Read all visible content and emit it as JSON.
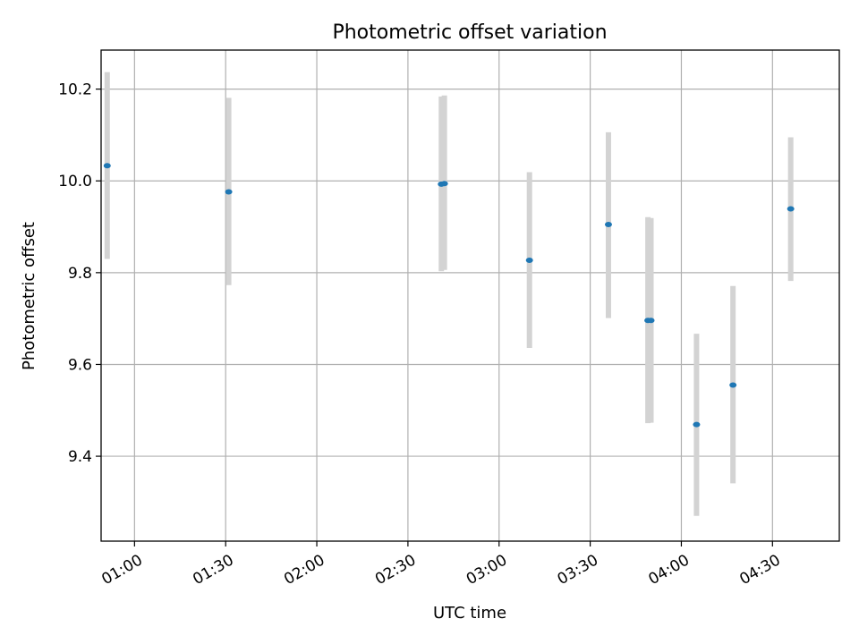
{
  "chart_data": {
    "type": "scatter",
    "title": "Photometric offset variation",
    "xlabel": "UTC time",
    "ylabel": "Photometric offset",
    "x_axis": {
      "kind": "time",
      "range": [
        "00:49",
        "04:52"
      ],
      "ticks": [
        "01:00",
        "01:30",
        "02:00",
        "02:30",
        "03:00",
        "03:30",
        "04:00",
        "04:30"
      ]
    },
    "y_axis": {
      "range": [
        9.215,
        10.285
      ],
      "ticks": [
        "9.4",
        "9.6",
        "9.8",
        "10.0",
        "10.2"
      ]
    },
    "grid": true,
    "colors": {
      "marker": "#1f77b4",
      "errorbar": "#d3d3d3"
    },
    "points": [
      {
        "time": "00:51",
        "y": 10.033,
        "low": 9.83,
        "high": 10.237
      },
      {
        "time": "01:31",
        "y": 9.976,
        "low": 9.773,
        "high": 10.181
      },
      {
        "time": "02:41",
        "y": 9.993,
        "low": 9.803,
        "high": 10.184
      },
      {
        "time": "02:42",
        "y": 9.994,
        "low": 9.806,
        "high": 10.186
      },
      {
        "time": "03:10",
        "y": 9.827,
        "low": 9.636,
        "high": 10.019
      },
      {
        "time": "03:36",
        "y": 9.905,
        "low": 9.701,
        "high": 10.106
      },
      {
        "time": "03:49",
        "y": 9.696,
        "low": 9.472,
        "high": 9.921
      },
      {
        "time": "03:50",
        "y": 9.696,
        "low": 9.473,
        "high": 9.919
      },
      {
        "time": "04:05",
        "y": 9.469,
        "low": 9.27,
        "high": 9.667
      },
      {
        "time": "04:17",
        "y": 9.555,
        "low": 9.341,
        "high": 9.771
      },
      {
        "time": "04:36",
        "y": 9.939,
        "low": 9.782,
        "high": 10.095
      }
    ]
  }
}
